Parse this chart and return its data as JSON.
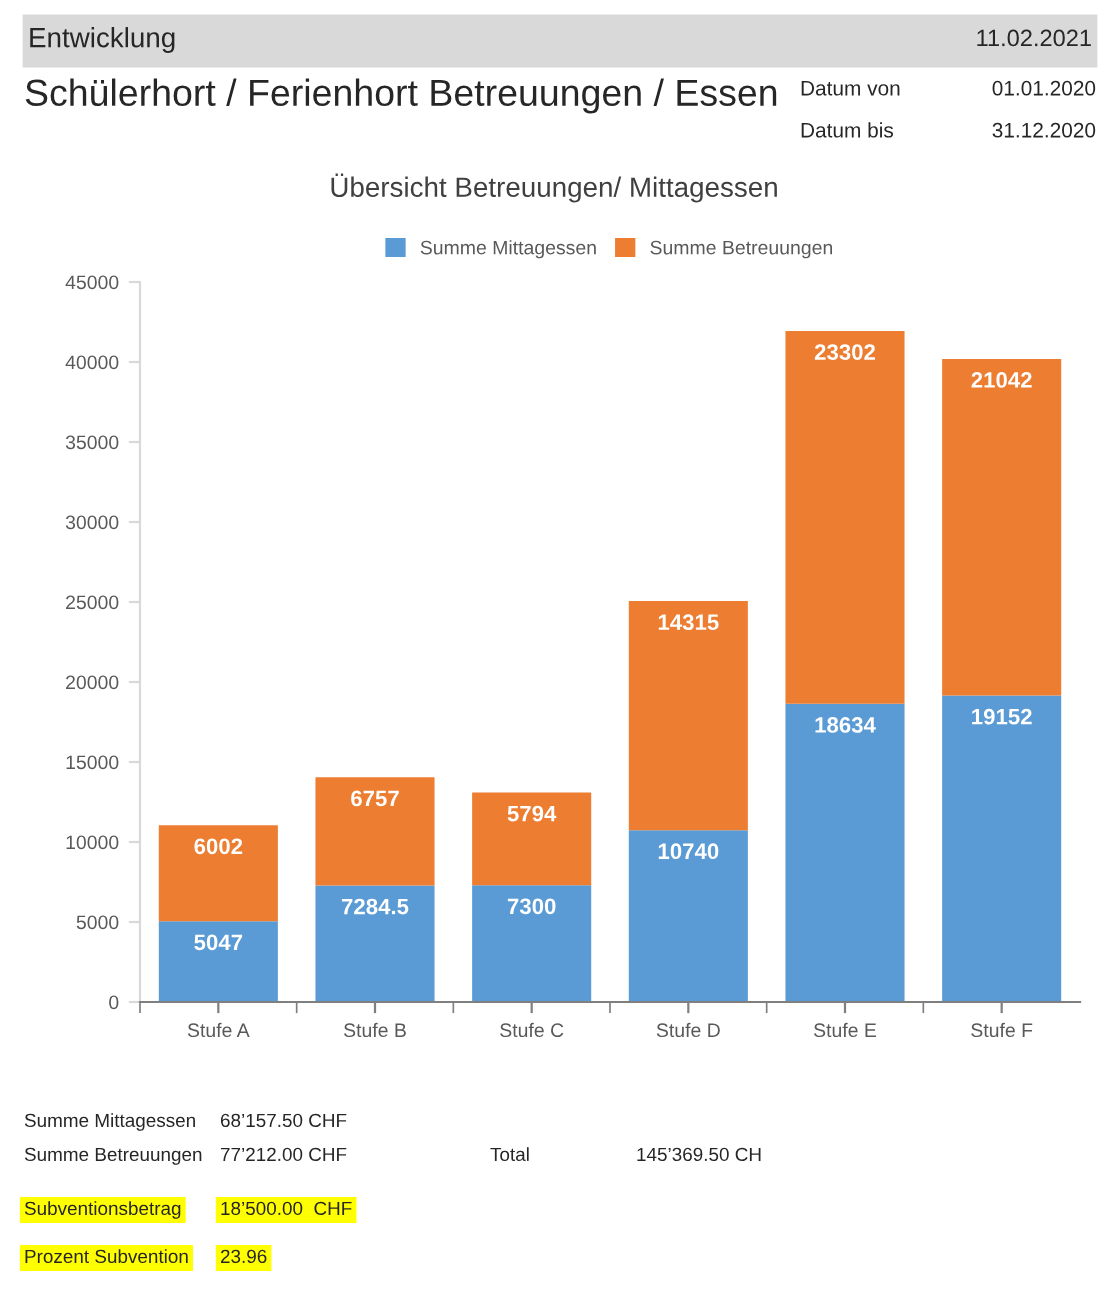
{
  "chart_data": {
    "type": "bar",
    "title": "Übersicht Betreuungen/ Mittagessen",
    "categories": [
      "Stufe A",
      "Stufe B",
      "Stufe C",
      "Stufe D",
      "Stufe E",
      "Stufe F"
    ],
    "series": [
      {
        "name": "Summe Mittagessen",
        "color": "#5b9bd5",
        "values": [
          5047,
          7284.5,
          7300,
          10740,
          18634,
          19152
        ]
      },
      {
        "name": "Summe Betreuungen",
        "color": "#ed7d31",
        "values": [
          6002,
          6757,
          5794,
          14315,
          23302,
          21042
        ]
      }
    ],
    "stacked": true,
    "data_labels": true,
    "legend": "top",
    "grid": false,
    "ylim": [
      0,
      45000
    ],
    "yticks": [
      0,
      5000,
      10000,
      15000,
      20000,
      25000,
      30000,
      35000,
      40000,
      45000
    ],
    "annotations": [
      "Entwicklung",
      "11.02.2021",
      "Schülerhort / Ferienhort Betreuungen / Essen",
      "Datum von",
      "01.01.2020",
      "Datum bis",
      "31.12.2020",
      "Summe Mittagessen",
      "68’157.50 CHF",
      "Summe Betreuungen",
      "77’212.00 CHF",
      "Total",
      "145’369.50 CH",
      "Subventionsbetrag",
      "18’500.00  CHF",
      "Prozent Subvention",
      "23.96"
    ]
  }
}
